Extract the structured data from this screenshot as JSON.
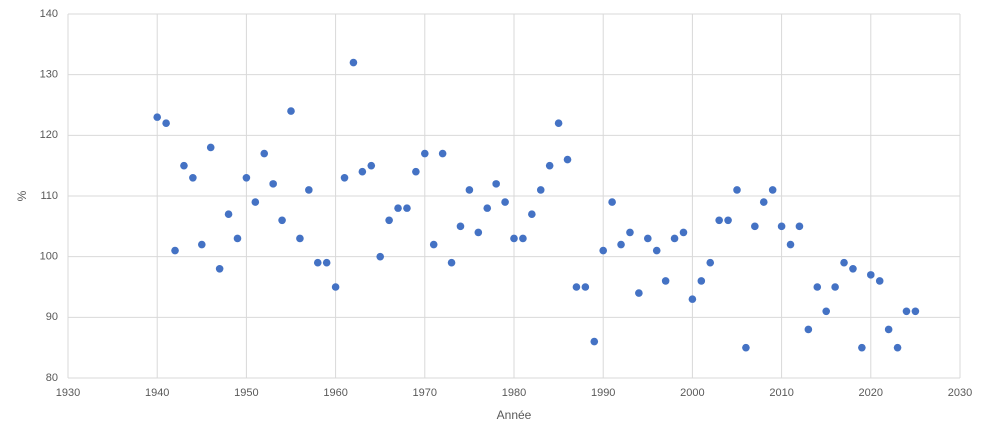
{
  "chart_data": {
    "type": "scatter",
    "x_label": "Année",
    "y_label": "%",
    "x": [
      1940,
      1941,
      1942,
      1943,
      1944,
      1945,
      1946,
      1947,
      1948,
      1949,
      1950,
      1951,
      1952,
      1953,
      1954,
      1955,
      1956,
      1957,
      1958,
      1959,
      1960,
      1961,
      1962,
      1963,
      1964,
      1965,
      1966,
      1967,
      1968,
      1969,
      1970,
      1971,
      1972,
      1973,
      1974,
      1975,
      1976,
      1977,
      1978,
      1979,
      1980,
      1981,
      1982,
      1983,
      1984,
      1985,
      1986,
      1987,
      1988,
      1989,
      1990,
      1991,
      1992,
      1993,
      1994,
      1995,
      1996,
      1997,
      1998,
      1999,
      2000,
      2001,
      2002,
      2003,
      2004,
      2005,
      2006,
      2007,
      2008,
      2009,
      2010,
      2011,
      2012,
      2013,
      2014,
      2015,
      2016,
      2017,
      2018,
      2019,
      2020,
      2021,
      2022,
      2023,
      2024,
      2025
    ],
    "values": [
      123,
      122,
      101,
      115,
      113,
      102,
      118,
      98,
      107,
      103,
      113,
      109,
      117,
      112,
      106,
      124,
      103,
      111,
      99,
      99,
      95,
      113,
      132,
      114,
      115,
      100,
      106,
      108,
      108,
      114,
      117,
      102,
      117,
      99,
      105,
      111,
      104,
      108,
      112,
      109,
      103,
      103,
      107,
      111,
      115,
      122,
      116,
      95,
      95,
      86,
      101,
      109,
      102,
      104,
      94,
      103,
      101,
      96,
      103,
      104,
      93,
      96,
      99,
      106,
      106,
      111,
      85,
      105,
      109,
      111,
      105,
      102,
      105,
      88,
      95,
      91,
      95,
      99,
      98,
      85,
      97,
      96,
      88,
      85,
      91,
      91
    ],
    "color": "#4472c4",
    "xlim": [
      1930,
      2030
    ],
    "xticks": [
      1930,
      1940,
      1950,
      1960,
      1970,
      1980,
      1990,
      2000,
      2010,
      2020,
      2030
    ],
    "ylim": [
      80,
      140
    ],
    "yticks": [
      80,
      90,
      100,
      110,
      120,
      130,
      140
    ],
    "grid": true
  }
}
